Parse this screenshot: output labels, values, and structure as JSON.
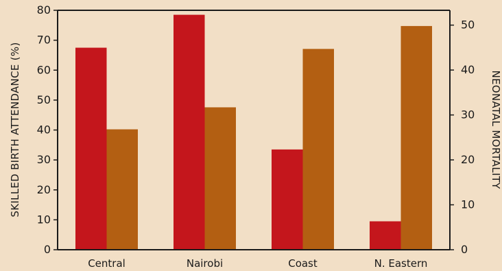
{
  "chart_data": {
    "type": "bar",
    "categories": [
      "Central",
      "Nairobi",
      "Coast",
      "N. Eastern"
    ],
    "series": [
      {
        "axis": "left",
        "color": "#c4161c",
        "values": [
          67.5,
          78.5,
          33.5,
          9.5
        ]
      },
      {
        "axis": "right",
        "color": "#b35f12",
        "values": [
          26.8,
          31.7,
          44.7,
          49.8
        ]
      }
    ],
    "ylabel": "SKILLED BIRTH ATTENDANCE (%)",
    "y2label": "NEONATAL MORTALITY",
    "ylim": [
      0,
      80
    ],
    "y2lim": [
      0,
      53.3
    ],
    "yticks": [
      0,
      10,
      20,
      30,
      40,
      50,
      60,
      70,
      80
    ],
    "y2ticks": [
      0,
      10,
      20,
      30,
      40,
      50
    ],
    "grid": false,
    "legend": "none"
  },
  "colors": {
    "background": "#f2dfc6",
    "axis": "#1a1a1a"
  }
}
